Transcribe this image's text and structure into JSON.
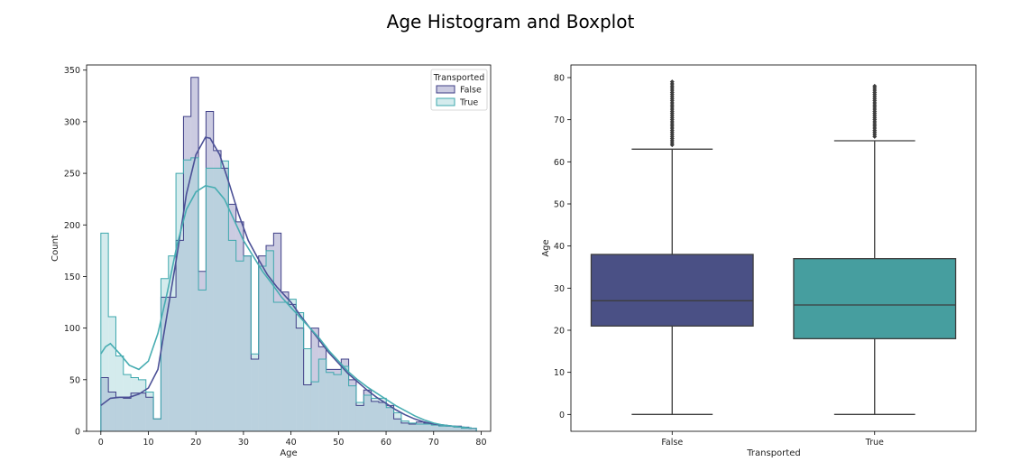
{
  "figure": {
    "suptitle": "Age Histogram and Boxplot"
  },
  "chart_data": [
    {
      "type": "histogram",
      "xlabel": "Age",
      "ylabel": "Count",
      "xlim": [
        -3,
        82
      ],
      "ylim": [
        0,
        355
      ],
      "xticks": [
        0,
        10,
        20,
        30,
        40,
        50,
        60,
        70,
        80
      ],
      "yticks": [
        0,
        50,
        100,
        150,
        200,
        250,
        300,
        350
      ],
      "legend": {
        "title": "Transported",
        "position": "top-right"
      },
      "bin_edges": [
        0,
        1.58,
        3.16,
        4.74,
        6.32,
        7.9,
        9.48,
        11.06,
        12.64,
        14.22,
        15.8,
        17.38,
        18.96,
        20.54,
        22.12,
        23.7,
        25.28,
        26.86,
        28.44,
        30.02,
        31.6,
        33.18,
        34.76,
        36.34,
        37.92,
        39.5,
        41.08,
        42.66,
        44.24,
        45.82,
        47.4,
        48.98,
        50.56,
        52.14,
        53.72,
        55.3,
        56.88,
        58.46,
        60.04,
        61.62,
        63.2,
        64.78,
        66.36,
        67.94,
        69.52,
        71.1,
        72.68,
        74.26,
        75.84,
        77.42,
        79
      ],
      "series": [
        {
          "name": "False",
          "fill": "#9798c4",
          "edge": "#3f3f87",
          "kde_color": "#4b5096",
          "values": [
            52,
            38,
            33,
            32,
            37,
            37,
            33,
            12,
            130,
            130,
            185,
            305,
            343,
            155,
            310,
            272,
            255,
            220,
            203,
            170,
            70,
            170,
            180,
            192,
            135,
            123,
            100,
            45,
            100,
            82,
            60,
            60,
            70,
            50,
            25,
            40,
            29,
            28,
            25,
            12,
            8,
            7,
            9,
            8,
            7,
            6,
            5,
            5,
            4,
            3
          ],
          "kde": [
            [
              0,
              25
            ],
            [
              2,
              32
            ],
            [
              4,
              33
            ],
            [
              6,
              33
            ],
            [
              8,
              36
            ],
            [
              10,
              42
            ],
            [
              12,
              60
            ],
            [
              14,
              115
            ],
            [
              16,
              170
            ],
            [
              18,
              230
            ],
            [
              20,
              268
            ],
            [
              22,
              285
            ],
            [
              23,
              284
            ],
            [
              25,
              268
            ],
            [
              27,
              240
            ],
            [
              29,
              210
            ],
            [
              31,
              185
            ],
            [
              33,
              168
            ],
            [
              35,
              152
            ],
            [
              37,
              140
            ],
            [
              40,
              125
            ],
            [
              42,
              112
            ],
            [
              44,
              100
            ],
            [
              46,
              88
            ],
            [
              48,
              76
            ],
            [
              50,
              66
            ],
            [
              52,
              56
            ],
            [
              54,
              48
            ],
            [
              56,
              40
            ],
            [
              58,
              33
            ],
            [
              60,
              27
            ],
            [
              62,
              21
            ],
            [
              64,
              16
            ],
            [
              66,
              12
            ],
            [
              68,
              9
            ],
            [
              70,
              7
            ],
            [
              72,
              6
            ],
            [
              74,
              5
            ],
            [
              76,
              4
            ],
            [
              78,
              3
            ]
          ]
        },
        {
          "name": "True",
          "fill": "#a9d8db",
          "edge": "#3ea8ad",
          "kde_color": "#48adb2",
          "values": [
            192,
            111,
            73,
            55,
            52,
            50,
            38,
            12,
            148,
            170,
            250,
            263,
            265,
            137,
            255,
            255,
            262,
            185,
            165,
            170,
            75,
            160,
            175,
            125,
            125,
            128,
            115,
            80,
            48,
            70,
            57,
            55,
            63,
            44,
            28,
            35,
            32,
            32,
            23,
            18,
            10,
            8,
            7,
            7,
            6,
            5,
            5,
            4,
            3,
            3
          ],
          "kde": [
            [
              0,
              75
            ],
            [
              1,
              82
            ],
            [
              2,
              85
            ],
            [
              4,
              75
            ],
            [
              6,
              64
            ],
            [
              8,
              60
            ],
            [
              10,
              68
            ],
            [
              12,
              95
            ],
            [
              14,
              135
            ],
            [
              16,
              180
            ],
            [
              18,
              215
            ],
            [
              20,
              232
            ],
            [
              22,
              238
            ],
            [
              24,
              236
            ],
            [
              26,
              225
            ],
            [
              28,
              205
            ],
            [
              30,
              185
            ],
            [
              32,
              170
            ],
            [
              34,
              155
            ],
            [
              36,
              143
            ],
            [
              38,
              130
            ],
            [
              40,
              120
            ],
            [
              42,
              110
            ],
            [
              44,
              100
            ],
            [
              46,
              90
            ],
            [
              48,
              78
            ],
            [
              50,
              68
            ],
            [
              52,
              58
            ],
            [
              54,
              50
            ],
            [
              56,
              43
            ],
            [
              58,
              37
            ],
            [
              60,
              31
            ],
            [
              62,
              25
            ],
            [
              64,
              20
            ],
            [
              66,
              15
            ],
            [
              68,
              11
            ],
            [
              70,
              8
            ],
            [
              72,
              6
            ],
            [
              74,
              5
            ],
            [
              76,
              4
            ],
            [
              78,
              3
            ]
          ]
        }
      ]
    },
    {
      "type": "box",
      "xlabel": "Transported",
      "ylabel": "Age",
      "ylim": [
        -4,
        83
      ],
      "yticks": [
        0,
        10,
        20,
        30,
        40,
        50,
        60,
        70,
        80
      ],
      "categories": [
        "False",
        "True"
      ],
      "boxes": [
        {
          "name": "False",
          "color": "#4a5085",
          "whislo": 0,
          "q1": 21,
          "med": 27,
          "q3": 38,
          "whishi": 63,
          "fliers": [
            64,
            64.5,
            65,
            65.5,
            66,
            66.5,
            67,
            67.5,
            68,
            68.5,
            69,
            69.5,
            70,
            70.5,
            71,
            71.5,
            72,
            72.5,
            73,
            73.5,
            74,
            74.5,
            75,
            75.5,
            76,
            76.5,
            77,
            77.5,
            78,
            78.5,
            79
          ]
        },
        {
          "name": "True",
          "color": "#469e9f",
          "whislo": 0,
          "q1": 18,
          "med": 26,
          "q3": 37,
          "whishi": 65,
          "fliers": [
            66,
            66.5,
            67,
            67.5,
            68,
            68.5,
            69,
            69.5,
            70,
            70.5,
            71,
            71.5,
            72,
            72.5,
            73,
            73.5,
            74,
            74.5,
            75,
            75.5,
            76,
            76.5,
            77,
            77.5,
            78
          ]
        }
      ]
    }
  ]
}
